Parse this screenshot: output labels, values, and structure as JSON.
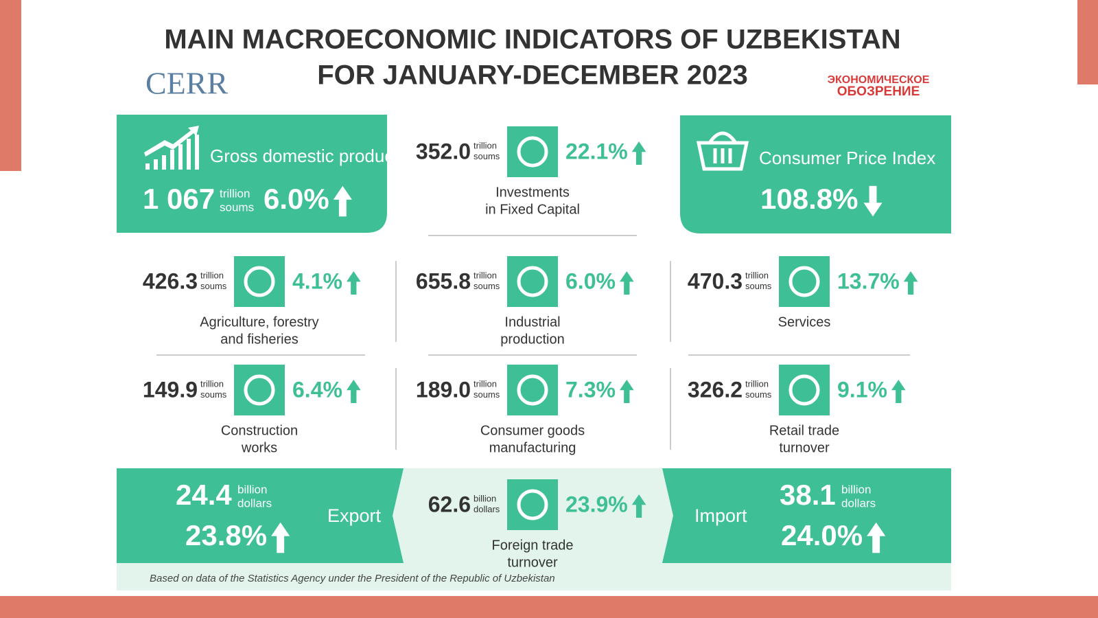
{
  "header": {
    "title": [
      "MAIN MACROECONOMIC INDICATORS OF UZBEKISTAN",
      "FOR JANUARY-DECEMBER 2023"
    ],
    "logo_left": "CERR",
    "logo_right": [
      "ЭКОНОМИЧЕСКОЕ",
      "ОБОЗРЕНИЕ"
    ]
  },
  "highlights": [
    {
      "label": "Gross domestic product",
      "value": "1 067",
      "unit": [
        "trillion",
        "soums"
      ],
      "change": "6.0%",
      "direction": "up"
    },
    {
      "label": "Consumer Price Index",
      "value": "108.8%",
      "direction": "down"
    }
  ],
  "investments": {
    "value": "352.0",
    "unit": [
      "trillion",
      "soums"
    ],
    "change": "22.1%",
    "direction": "up",
    "label": [
      "Investments",
      "in Fixed Capital"
    ]
  },
  "sectors": [
    {
      "value": "426.3",
      "unit": [
        "trillion",
        "soums"
      ],
      "change": "4.1%",
      "direction": "up",
      "label": [
        "Agriculture, forestry",
        "and fisheries"
      ]
    },
    {
      "value": "655.8",
      "unit": [
        "trillion",
        "soums"
      ],
      "change": "6.0%",
      "direction": "up",
      "label": [
        "Industrial",
        "production"
      ]
    },
    {
      "value": "470.3",
      "unit": [
        "trillion",
        "soums"
      ],
      "change": "13.7%",
      "direction": "up",
      "label": [
        "Services"
      ]
    },
    {
      "value": "149.9",
      "unit": [
        "trillion",
        "soums"
      ],
      "change": "6.4%",
      "direction": "up",
      "label": [
        "Construction",
        "works"
      ]
    },
    {
      "value": "189.0",
      "unit": [
        "trillion",
        "soums"
      ],
      "change": "7.3%",
      "direction": "up",
      "label": [
        "Consumer goods",
        "manufacturing"
      ]
    },
    {
      "value": "326.2",
      "unit": [
        "trillion",
        "soums"
      ],
      "change": "9.1%",
      "direction": "up",
      "label": [
        "Retail trade",
        "turnover"
      ]
    }
  ],
  "trade": {
    "export": {
      "label": "Export",
      "value": "24.4",
      "unit": [
        "billion",
        "dollars"
      ],
      "change": "23.8%",
      "direction": "up"
    },
    "turnover": {
      "value": "62.6",
      "unit": [
        "billion",
        "dollars"
      ],
      "change": "23.9%",
      "direction": "up",
      "label": [
        "Foreign trade",
        "turnover"
      ]
    },
    "import": {
      "label": "Import",
      "value": "38.1",
      "unit": [
        "billion",
        "dollars"
      ],
      "change": "24.0%",
      "direction": "up"
    }
  },
  "source": "Based on data of the Statistics Agency under the President of the Republic of Uzbekistan"
}
